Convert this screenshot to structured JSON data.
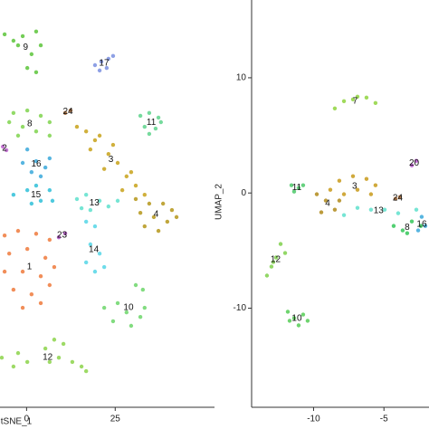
{
  "chart_data": [
    {
      "type": "scatter",
      "xlabel": "tSNE_1",
      "xlim": [
        -7.5,
        52.5
      ],
      "ylim": [
        -40,
        75
      ],
      "xticks": [
        0,
        25
      ],
      "series": [
        {
          "name": "9",
          "color": "#5cc43a",
          "x": [
            -6.2,
            -3.7,
            -1.1,
            2.7,
            4.0,
            1.4,
            0.2,
            2.7,
            -2.4
          ],
          "y": [
            65.3,
            63.5,
            64.8,
            66.1,
            62.2,
            59.7,
            55.8,
            54.6,
            62.2
          ]
        },
        {
          "name": "17",
          "color": "#7a8fe0",
          "x": [
            19.3,
            21.1,
            23.1,
            24.4,
            20.6,
            22.6
          ],
          "y": [
            56.6,
            57.6,
            58.4,
            59.2,
            55.1,
            55.8
          ]
        },
        {
          "name": "8",
          "color": "#7fd34e",
          "x": [
            -3.7,
            0.2,
            4.0,
            6.5,
            -1.1,
            2.7,
            -2.4,
            6.5,
            -4.9
          ],
          "y": [
            43.1,
            43.8,
            42.3,
            40.5,
            39.2,
            37.9,
            36.7,
            36.7,
            40.5
          ]
        },
        {
          "name": "24",
          "color": "#a0622d",
          "x": [
            10.9,
            12.4
          ],
          "y": [
            43.1,
            43.8
          ]
        },
        {
          "name": "11",
          "color": "#5ed38c",
          "x": [
            32.1,
            34.6,
            37.2,
            33.3,
            36.4,
            34.6,
            37.9
          ],
          "y": [
            42.3,
            43.1,
            41.8,
            39.2,
            38.7,
            37.2,
            40.5
          ]
        },
        {
          "name": "2",
          "color": "#c061d0",
          "x": [
            -6.7,
            -5.7
          ],
          "y": [
            33.6,
            32.6
          ]
        },
        {
          "name": "16",
          "color": "#3aa8da",
          "x": [
            0.2,
            2.7,
            5.3,
            1.4,
            4.0,
            -1.1,
            6.5
          ],
          "y": [
            32.8,
            29.5,
            27.7,
            26.4,
            25.2,
            29.0,
            30.3
          ]
        },
        {
          "name": "3",
          "color": "#c8a21a",
          "x": [
            14.2,
            16.8,
            20.6,
            18.0,
            23.1,
            25.7,
            21.9,
            28.2,
            30.8,
            27.0,
            33.3,
            24.4,
            19.3,
            29.5
          ],
          "y": [
            39.2,
            37.9,
            36.7,
            32.8,
            31.5,
            29.0,
            27.3,
            25.2,
            22.6,
            21.3,
            20.0,
            34.1,
            35.4,
            26.4
          ]
        },
        {
          "name": "4",
          "color": "#b5961a",
          "x": [
            30.8,
            34.6,
            38.5,
            41.0,
            35.9,
            39.7,
            33.3,
            42.3,
            37.2,
            32.1
          ],
          "y": [
            18.8,
            17.5,
            17.5,
            15.7,
            13.7,
            12.4,
            11.1,
            13.7,
            9.8,
            14.9
          ]
        },
        {
          "name": "15",
          "color": "#2fc0d8",
          "x": [
            0.2,
            2.7,
            6.5,
            4.0,
            1.4,
            -3.7,
            7.3
          ],
          "y": [
            21.3,
            22.6,
            21.3,
            18.3,
            17.5,
            20.0,
            18.3
          ]
        },
        {
          "name": "13",
          "color": "#5ee0cc",
          "x": [
            14.2,
            16.8,
            20.6,
            23.1,
            18.0,
            25.7,
            15.5
          ],
          "y": [
            18.8,
            20.0,
            18.3,
            16.7,
            15.7,
            18.3,
            16.2
          ]
        },
        {
          "name": "23",
          "color": "#b44fc9",
          "x": [
            9.1,
            10.9
          ],
          "y": [
            8.0,
            9.1
          ]
        },
        {
          "name": "1",
          "color": "#ee7a3c",
          "x": [
            -6.2,
            -2.4,
            2.7,
            6.5,
            -4.9,
            0.2,
            5.3,
            -6.2,
            -1.1,
            4.0,
            -3.7,
            1.4,
            6.5,
            -1.1,
            4.0,
            7.8
          ],
          "y": [
            8.5,
            9.8,
            9.0,
            7.3,
            3.4,
            4.7,
            2.2,
            -1.7,
            -1.7,
            -3.0,
            -6.8,
            -8.1,
            -5.5,
            -11.9,
            -10.6,
            -0.4
          ]
        },
        {
          "name": "14",
          "color": "#55d6e6",
          "x": [
            16.8,
            19.3,
            18.0,
            20.6,
            16.8,
            21.9,
            19.3
          ],
          "y": [
            12.4,
            11.1,
            6.0,
            3.4,
            0.9,
            -0.4,
            -1.7
          ]
        },
        {
          "name": "10",
          "color": "#6cd66a",
          "x": [
            30.8,
            32.8,
            21.9,
            25.7,
            28.2,
            32.1,
            24.4,
            29.5,
            33.3
          ],
          "y": [
            -5.5,
            -6.8,
            -11.9,
            -10.6,
            -13.2,
            -14.5,
            -15.7,
            -17.0,
            -11.9
          ]
        },
        {
          "name": "12",
          "color": "#8cd44a",
          "x": [
            7.8,
            10.4,
            5.3,
            9.1,
            12.9,
            15.5,
            6.5,
            -7.0,
            -3.7,
            0.2,
            -2.4,
            16.8
          ],
          "y": [
            -20.9,
            -22.1,
            -23.4,
            -26.0,
            -27.2,
            -28.5,
            -27.2,
            -26.0,
            -28.5,
            -27.2,
            -24.7,
            -29.8
          ]
        }
      ]
    },
    {
      "type": "scatter",
      "ylabel": "UMAP_2",
      "xlim": [
        -14.4,
        -1.8
      ],
      "ylim": [
        -18.6,
        16.75
      ],
      "xticks": [
        -10,
        -5
      ],
      "yticks": [
        -10,
        0,
        10
      ],
      "series": [
        {
          "name": "7",
          "color": "#8fd43e",
          "x": [
            -8.49,
            -7.84,
            -6.88,
            -6.24,
            -5.6,
            -7.2
          ],
          "y": [
            7.34,
            7.97,
            8.36,
            8.28,
            7.81,
            8.12
          ]
        },
        {
          "name": "20",
          "color": "#b44fc9",
          "x": [
            -3.02,
            -2.7
          ],
          "y": [
            2.4,
            2.79
          ]
        },
        {
          "name": "11",
          "color": "#4cc96a",
          "x": [
            -11.57,
            -11.06,
            -11.38,
            -10.74
          ],
          "y": [
            0.67,
            0.44,
            0.12,
            0.67
          ]
        },
        {
          "name": "3",
          "color": "#c89a1a",
          "x": [
            -8.17,
            -7.2,
            -6.24,
            -5.6,
            -6.88,
            -7.84,
            -5.92,
            -8.81
          ],
          "y": [
            1.06,
            1.46,
            1.22,
            0.67,
            0.28,
            -0.11,
            -0.11,
            0.28
          ]
        },
        {
          "name": "4",
          "color": "#b08a1a",
          "x": [
            -9.77,
            -9.13,
            -8.49,
            -9.45,
            -8.17
          ],
          "y": [
            -0.11,
            -0.66,
            -1.45,
            -1.68,
            -0.66
          ]
        },
        {
          "name": "24",
          "color": "#a0622d",
          "x": [
            -4.18,
            -3.86
          ],
          "y": [
            -0.5,
            -0.35
          ]
        },
        {
          "name": "13",
          "color": "#5ee0cc",
          "x": [
            -6.88,
            -5.92,
            -4.95,
            -3.99,
            -2.7,
            -7.84
          ],
          "y": [
            -1.29,
            -1.45,
            -1.45,
            -1.76,
            -1.45,
            -1.92
          ]
        },
        {
          "name": "8",
          "color": "#34c759",
          "x": [
            -4.31,
            -3.67,
            -3.02,
            -3.35,
            -2.38
          ],
          "y": [
            -2.86,
            -3.25,
            -2.47,
            -3.49,
            -2.86
          ]
        },
        {
          "name": "16",
          "color": "#3aa8da",
          "x": [
            -2.57,
            -2.06,
            -2.32
          ],
          "y": [
            -3.25,
            -2.86,
            -2.07
          ]
        },
        {
          "name": "12",
          "color": "#7fd04b",
          "x": [
            -12.34,
            -12.66,
            -12.99,
            -12.02,
            -13.31,
            -12.86
          ],
          "y": [
            -4.43,
            -5.6,
            -6.39,
            -5.21,
            -7.17,
            -6.0
          ]
        },
        {
          "name": "10",
          "color": "#55cc55",
          "x": [
            -11.83,
            -11.38,
            -10.74,
            -10.42,
            -11.7,
            -11.06
          ],
          "y": [
            -10.31,
            -10.86,
            -10.55,
            -11.09,
            -11.09,
            -11.49
          ]
        }
      ]
    }
  ]
}
